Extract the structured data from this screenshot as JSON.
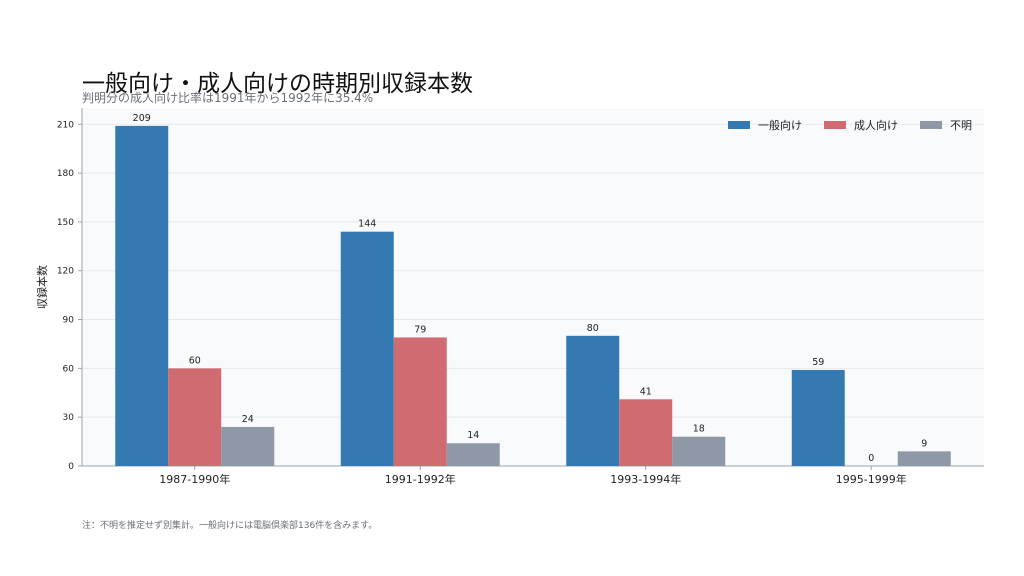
{
  "header": {
    "title": "一般向け・成人向けの時期別収録本数",
    "subtitle": "判明分の成人向け比率は1991年から1992年に35.4%"
  },
  "footnote": "注：不明を推定せず別集計。一般向けには電脳倶楽部136件を含みます。",
  "colors": {
    "general": "#3579b3",
    "adult": "#d06b72",
    "unknown": "#8f98a6",
    "plot_bg": "#f8fafc",
    "grid": "#e5e9ee",
    "axis": "#9aa3ad"
  },
  "chart_data": {
    "type": "bar",
    "title": "一般向け・成人向けの時期別収録本数",
    "subtitle": "判明分の成人向け比率は1991年から1992年に35.4%",
    "xlabel": "",
    "ylabel": "収録本数",
    "ylim": [
      0,
      220
    ],
    "yticks": [
      0,
      30,
      60,
      90,
      120,
      150,
      180,
      210
    ],
    "grid": true,
    "legend_position": "top-right",
    "categories": [
      "1987-1990年",
      "1991-1992年",
      "1993-1994年",
      "1995-1999年"
    ],
    "series": [
      {
        "name": "一般向け",
        "color": "#3579b3",
        "values": [
          209,
          144,
          80,
          59
        ]
      },
      {
        "name": "成人向け",
        "color": "#d06b72",
        "values": [
          60,
          79,
          41,
          0
        ]
      },
      {
        "name": "不明",
        "color": "#8f98a6",
        "values": [
          24,
          14,
          18,
          9
        ]
      }
    ]
  }
}
